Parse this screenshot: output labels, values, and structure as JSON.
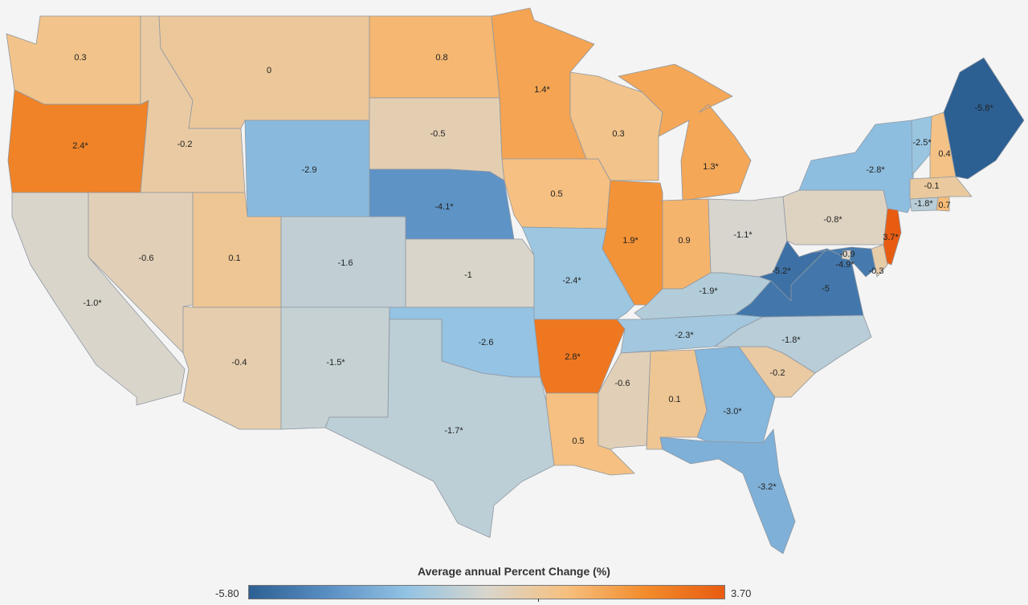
{
  "legend": {
    "title": "Average annual Percent Change (%)",
    "min_label": "-5.80",
    "max_label": "3.70",
    "min": -5.8,
    "max": 3.7,
    "colors": [
      "#2c5f92",
      "#5a8fc4",
      "#93c3e3",
      "#d9d6cd",
      "#f6c07f",
      "#f28c2c",
      "#e85c11"
    ]
  },
  "states": [
    {
      "name": "WA",
      "label": "0.3",
      "value": 0.3
    },
    {
      "name": "OR",
      "label": "2.4*",
      "value": 2.4
    },
    {
      "name": "CA",
      "label": "-1.0*",
      "value": -1.0
    },
    {
      "name": "ID",
      "label": "-0.2",
      "value": -0.2
    },
    {
      "name": "NV",
      "label": "-0.6",
      "value": -0.6
    },
    {
      "name": "MT",
      "label": "0",
      "value": 0
    },
    {
      "name": "WY",
      "label": "-2.9",
      "value": -2.9
    },
    {
      "name": "UT",
      "label": "0.1",
      "value": 0.1
    },
    {
      "name": "AZ",
      "label": "-0.4",
      "value": -0.4
    },
    {
      "name": "CO",
      "label": "-1.6",
      "value": -1.6
    },
    {
      "name": "NM",
      "label": "-1.5*",
      "value": -1.5
    },
    {
      "name": "ND",
      "label": "0.8",
      "value": 0.8
    },
    {
      "name": "SD",
      "label": "-0.5",
      "value": -0.5
    },
    {
      "name": "NE",
      "label": "-4.1*",
      "value": -4.1
    },
    {
      "name": "KS",
      "label": "-1",
      "value": -1
    },
    {
      "name": "OK",
      "label": "-2.6",
      "value": -2.6
    },
    {
      "name": "TX",
      "label": "-1.7*",
      "value": -1.7
    },
    {
      "name": "MN",
      "label": "1.4*",
      "value": 1.4
    },
    {
      "name": "IA",
      "label": "0.5",
      "value": 0.5
    },
    {
      "name": "MO",
      "label": "-2.4*",
      "value": -2.4
    },
    {
      "name": "AR",
      "label": "2.8*",
      "value": 2.8
    },
    {
      "name": "LA",
      "label": "0.5",
      "value": 0.5
    },
    {
      "name": "WI",
      "label": "0.3",
      "value": 0.3
    },
    {
      "name": "IL",
      "label": "1.9*",
      "value": 1.9
    },
    {
      "name": "MI",
      "label": "1.3*",
      "value": 1.3
    },
    {
      "name": "IN",
      "label": "0.9",
      "value": 0.9
    },
    {
      "name": "OH",
      "label": "-1.1*",
      "value": -1.1
    },
    {
      "name": "KY",
      "label": "-1.9*",
      "value": -1.9
    },
    {
      "name": "TN",
      "label": "-2.3*",
      "value": -2.3
    },
    {
      "name": "MS",
      "label": "-0.6",
      "value": -0.6
    },
    {
      "name": "AL",
      "label": "0.1",
      "value": 0.1
    },
    {
      "name": "GA",
      "label": "-3.0*",
      "value": -3.0
    },
    {
      "name": "FL",
      "label": "-3.2*",
      "value": -3.2
    },
    {
      "name": "SC",
      "label": "-0.2",
      "value": -0.2
    },
    {
      "name": "NC",
      "label": "-1.8*",
      "value": -1.8
    },
    {
      "name": "VA",
      "label": "-5",
      "value": -5
    },
    {
      "name": "WV",
      "label": "-5.2*",
      "value": -5.2
    },
    {
      "name": "PA",
      "label": "-0.8*",
      "value": -0.8
    },
    {
      "name": "NY",
      "label": "-2.8*",
      "value": -2.8
    },
    {
      "name": "NJ",
      "label": "3.7*",
      "value": 3.7
    },
    {
      "name": "MD",
      "label": "-4.9*",
      "value": -4.9
    },
    {
      "name": "DE",
      "label": "-0.3",
      "value": -0.3
    },
    {
      "name": "DC",
      "label": "-0.9",
      "value": -0.9
    },
    {
      "name": "CT",
      "label": "-1.8*",
      "value": -1.8
    },
    {
      "name": "RI",
      "label": "0.7",
      "value": 0.7
    },
    {
      "name": "MA",
      "label": "-0.1",
      "value": -0.1
    },
    {
      "name": "VT",
      "label": "-2.5*",
      "value": -2.5
    },
    {
      "name": "NH",
      "label": "0.4",
      "value": 0.4
    },
    {
      "name": "ME",
      "label": "-5.8*",
      "value": -5.8
    }
  ]
}
